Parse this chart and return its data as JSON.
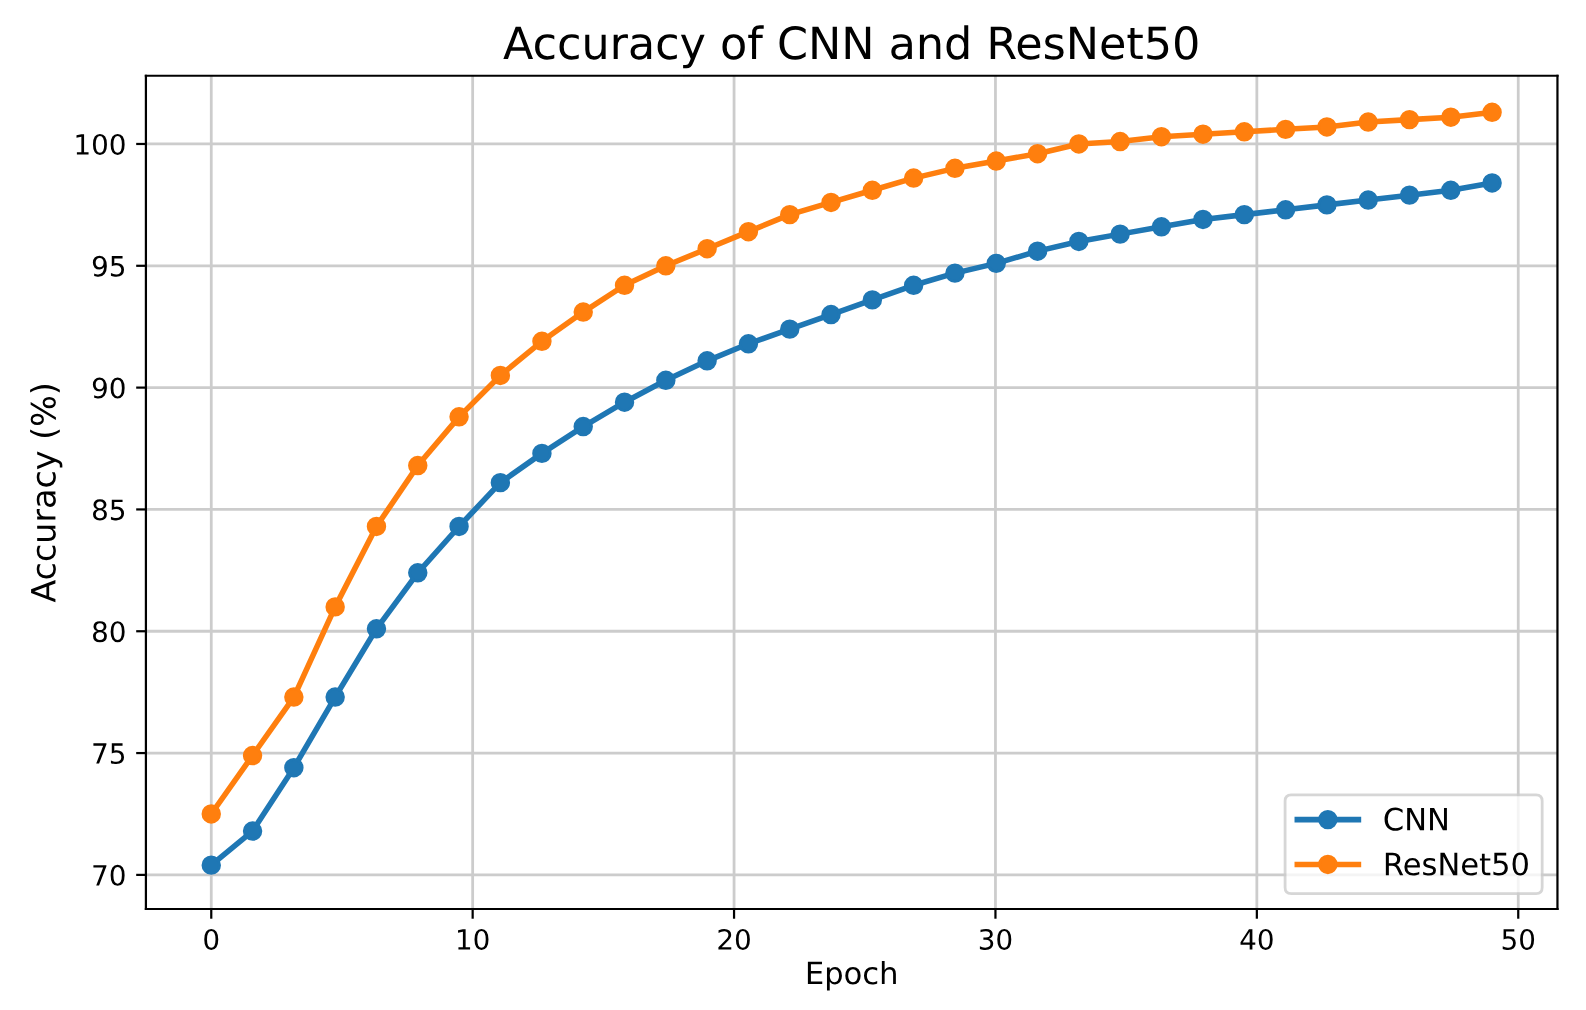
{
  "chart_data": {
    "type": "line",
    "title": "Accuracy of CNN and ResNet50",
    "xlabel": "Epoch",
    "ylabel": "Accuracy (%)",
    "x": [
      0,
      1.58,
      3.16,
      4.74,
      6.32,
      7.9,
      9.48,
      11.06,
      12.65,
      14.23,
      15.81,
      17.39,
      18.97,
      20.55,
      22.13,
      23.71,
      25.29,
      26.87,
      28.45,
      30.03,
      31.61,
      33.19,
      34.77,
      36.35,
      37.94,
      39.52,
      41.1,
      42.68,
      44.26,
      45.84,
      47.42,
      49
    ],
    "series": [
      {
        "name": "CNN",
        "color": "#1f77b4",
        "values": [
          70.4,
          71.8,
          74.4,
          77.3,
          80.1,
          82.4,
          84.3,
          86.1,
          87.3,
          88.4,
          89.4,
          90.3,
          91.1,
          91.8,
          92.4,
          93.0,
          93.6,
          94.2,
          94.7,
          95.1,
          95.6,
          96.0,
          96.3,
          96.6,
          96.9,
          97.1,
          97.3,
          97.5,
          97.7,
          97.9,
          98.1,
          98.4
        ]
      },
      {
        "name": "ResNet50",
        "color": "#ff7f0e",
        "values": [
          72.5,
          74.9,
          77.3,
          81.0,
          84.3,
          86.8,
          88.8,
          90.5,
          91.9,
          93.1,
          94.2,
          95.0,
          95.7,
          96.4,
          97.1,
          97.6,
          98.1,
          98.6,
          99.0,
          99.3,
          99.6,
          100.0,
          100.1,
          100.3,
          100.4,
          100.5,
          100.6,
          100.7,
          100.9,
          101.0,
          101.1,
          101.3
        ]
      }
    ],
    "xlim": [
      -2.5,
      51.5
    ],
    "ylim": [
      68.6,
      102.8
    ],
    "xticks": [
      0,
      10,
      20,
      30,
      40,
      50
    ],
    "yticks": [
      70,
      75,
      80,
      85,
      90,
      95,
      100
    ],
    "grid": true,
    "legend": "lower right",
    "marker": "circle",
    "line_style": "solid"
  }
}
